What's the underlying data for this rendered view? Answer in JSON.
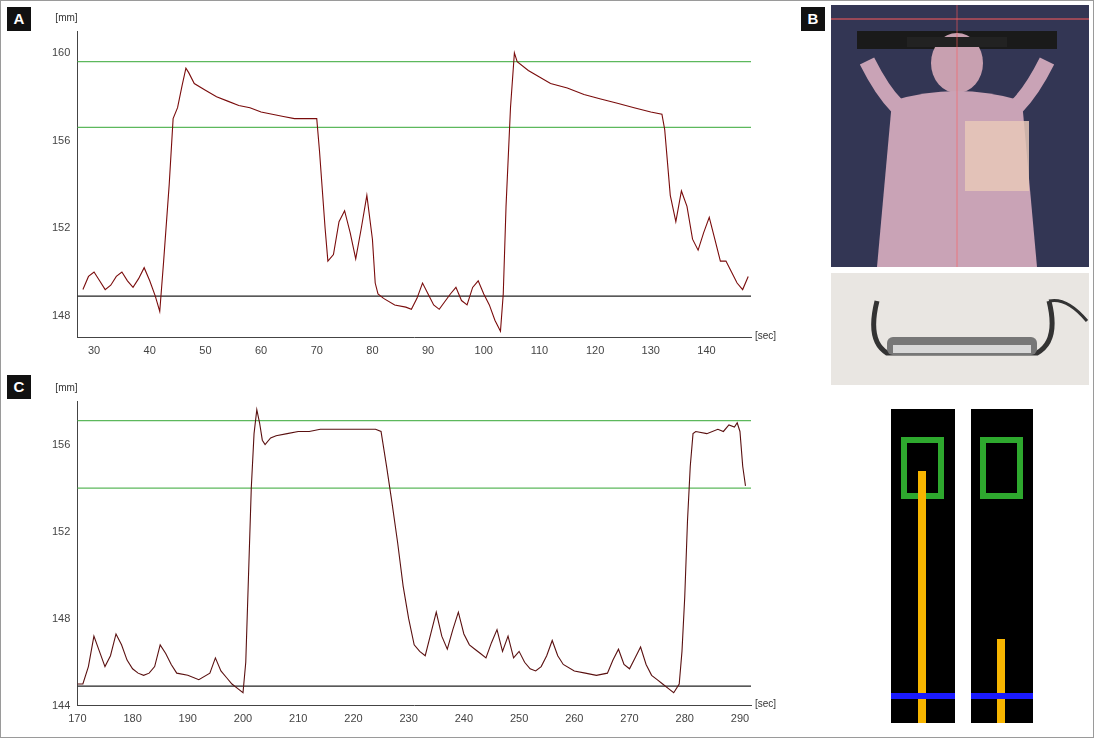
{
  "chart_data": [
    {
      "panel_label": "A",
      "type": "line",
      "color": "#7a0c0c",
      "marker": "none",
      "grid": false,
      "x_label": "[sec]",
      "y_label": "[mm]",
      "xlim": [
        27,
        148
      ],
      "ylim": [
        147,
        161
      ],
      "xticks": [
        30,
        40,
        50,
        60,
        70,
        80,
        90,
        100,
        110,
        120,
        130,
        140
      ],
      "yticks": [
        148,
        152,
        156,
        160
      ],
      "hlines": [
        {
          "value": 159.6,
          "color": "#5cb85c"
        },
        {
          "value": 156.6,
          "color": "#5cb85c"
        },
        {
          "value": 148.9,
          "color": "#222222"
        }
      ],
      "x": [
        28,
        29,
        30,
        31,
        32,
        33,
        34,
        35,
        36,
        37,
        38,
        39,
        40,
        41,
        41.8,
        42.5,
        43.5,
        44.2,
        45,
        45.8,
        46.5,
        47,
        48,
        50,
        52,
        54,
        56,
        58,
        60,
        62,
        64,
        66,
        68,
        70,
        70.5,
        71.5,
        72,
        73,
        74,
        75,
        76,
        77,
        78,
        79,
        80,
        80.5,
        81,
        82,
        84,
        86,
        87,
        88,
        89,
        90,
        91,
        92,
        94,
        95,
        96,
        97,
        98,
        99,
        100,
        101,
        102,
        103,
        103.5,
        104,
        104.8,
        105.5,
        106,
        108,
        110,
        112,
        115,
        118,
        121,
        124,
        127,
        130,
        132,
        132.5,
        133.5,
        134.5,
        135.5,
        136.5,
        137.5,
        138.5,
        139.5,
        140.5,
        141.5,
        142.5,
        143.5,
        144.5,
        145.5,
        146.5,
        147.5
      ],
      "values": [
        149.2,
        149.8,
        150.0,
        149.6,
        149.2,
        149.4,
        149.8,
        150.0,
        149.6,
        149.3,
        149.7,
        150.2,
        149.6,
        148.9,
        148.2,
        150.5,
        154,
        157,
        157.5,
        158.5,
        159.3,
        159.1,
        158.6,
        158.3,
        158.0,
        157.8,
        157.6,
        157.5,
        157.3,
        157.2,
        157.1,
        157.0,
        157.0,
        157.0,
        155.5,
        152,
        150.5,
        150.8,
        152.3,
        152.8,
        151.8,
        150.6,
        152,
        153.5,
        151.5,
        149.5,
        149,
        148.8,
        148.5,
        148.4,
        148.3,
        148.8,
        149.5,
        149.0,
        148.5,
        148.3,
        149,
        149.3,
        148.7,
        148.5,
        149.3,
        149.6,
        149,
        148.5,
        147.8,
        147.3,
        149,
        153,
        157.5,
        160,
        159.6,
        159.2,
        158.9,
        158.6,
        158.4,
        158.1,
        157.9,
        157.7,
        157.5,
        157.3,
        157.2,
        156.5,
        153.5,
        152.3,
        153.7,
        153,
        151.5,
        151,
        151.8,
        152.5,
        151.5,
        150.5,
        150.5,
        150,
        149.5,
        149.2,
        149.8
      ]
    },
    {
      "panel_label": "C",
      "type": "line",
      "color": "#5a1010",
      "marker": "none",
      "grid": false,
      "x_label": "[sec]",
      "y_label": "[mm]",
      "xlim": [
        170,
        292
      ],
      "ylim": [
        144,
        158
      ],
      "xticks": [
        170,
        180,
        190,
        200,
        210,
        220,
        230,
        240,
        250,
        260,
        270,
        280,
        290
      ],
      "yticks": [
        144,
        148,
        152,
        156
      ],
      "hlines": [
        {
          "value": 157.1,
          "color": "#5cb85c"
        },
        {
          "value": 154.0,
          "color": "#5cb85c"
        },
        {
          "value": 144.9,
          "color": "#222222"
        }
      ],
      "x": [
        170,
        171,
        172,
        173,
        174,
        175,
        176,
        177,
        178,
        179,
        180,
        181,
        182,
        183,
        184,
        185,
        186,
        187,
        188,
        190,
        192,
        194,
        195,
        196,
        197,
        198,
        199,
        200,
        200.5,
        201,
        201.5,
        202,
        202.5,
        203,
        203.5,
        204,
        205,
        206,
        208,
        210,
        212,
        214,
        216,
        218,
        220,
        222,
        224,
        225,
        226,
        227,
        228,
        229,
        230,
        231,
        232,
        233,
        234,
        235,
        236,
        237,
        238,
        239,
        240,
        241,
        242,
        243,
        244,
        245,
        246,
        247,
        248,
        249,
        250,
        251,
        252,
        253,
        254,
        255,
        256,
        257,
        258,
        260,
        262,
        264,
        266,
        267,
        268,
        269,
        270,
        271,
        272,
        273,
        274,
        275,
        276,
        277,
        278,
        279,
        279.5,
        280,
        280.5,
        281,
        281.5,
        282,
        284,
        286,
        287,
        288,
        289,
        289.5,
        290,
        290.5,
        291
      ],
      "values": [
        145,
        145,
        145.8,
        147.2,
        146.5,
        145.8,
        146.3,
        147.3,
        146.8,
        146.1,
        145.7,
        145.5,
        145.4,
        145.5,
        145.8,
        146.8,
        146.4,
        145.9,
        145.5,
        145.4,
        145.2,
        145.5,
        146.2,
        145.6,
        145.3,
        145,
        144.8,
        144.6,
        146,
        150,
        154,
        156.5,
        157.6,
        157,
        156.2,
        156.0,
        156.3,
        156.4,
        156.5,
        156.6,
        156.6,
        156.7,
        156.7,
        156.7,
        156.7,
        156.7,
        156.7,
        156.6,
        155,
        153.3,
        151.5,
        149.5,
        148,
        146.8,
        146.5,
        146.3,
        147.3,
        148.3,
        147.2,
        146.6,
        147.5,
        148.3,
        147.3,
        146.8,
        146.6,
        146.4,
        146.2,
        146.9,
        147.5,
        146.5,
        147.2,
        146.2,
        146.5,
        146,
        145.7,
        145.6,
        145.8,
        146.3,
        147,
        146.3,
        145.9,
        145.6,
        145.5,
        145.4,
        145.5,
        146.1,
        146.6,
        145.9,
        145.7,
        146.2,
        146.7,
        145.9,
        145.4,
        145.2,
        145,
        144.8,
        144.6,
        145,
        146.5,
        149,
        152.5,
        155,
        156.5,
        156.6,
        156.5,
        156.7,
        156.6,
        156.9,
        156.8,
        157,
        156.6,
        155,
        154.1
      ]
    }
  ],
  "panel_b": {
    "panel_label": "B"
  }
}
